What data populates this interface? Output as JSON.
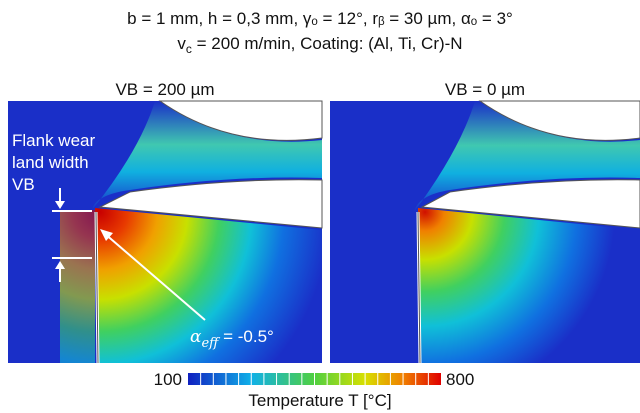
{
  "header": {
    "line1": "b = 1 mm, h = 0,3 mm, γₒ = 12°, rᵦ = 30 µm,  αₒ = 3°",
    "line2": {
      "symbol": "v",
      "subscript": "c",
      "text": " = 200 m/min, Coating: (Al, Ti, Cr)-N"
    }
  },
  "panels": [
    {
      "label": "VB = 200 µm"
    },
    {
      "label": "VB = 0 µm"
    }
  ],
  "annotations": {
    "flank_wear": [
      "Flank wear",
      "land width",
      "VB"
    ],
    "alpha_eff": {
      "symbol": "α",
      "subscript": "eff",
      "text": " = -0.5°"
    }
  },
  "colorbar": {
    "min": "100",
    "max": "800",
    "label": "Temperature T [°C]"
  }
}
